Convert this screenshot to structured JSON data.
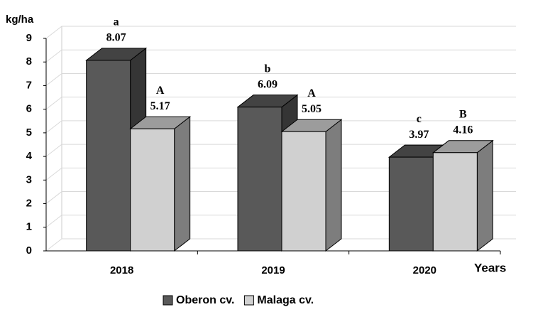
{
  "chart_data": {
    "type": "bar3d",
    "y_label": "kg/ha",
    "x_label": "Years",
    "categories": [
      "2018",
      "2019",
      "2020"
    ],
    "series": [
      {
        "name": "Oberon cv.",
        "color": "#595959",
        "values": [
          8.07,
          6.09,
          3.97
        ],
        "annotations": [
          "a",
          "b",
          "c"
        ]
      },
      {
        "name": "Malaga cv.",
        "color": "#d0d0d0",
        "values": [
          5.17,
          5.05,
          4.16
        ],
        "annotations": [
          "A",
          "A",
          "B"
        ]
      }
    ],
    "ylim": [
      0,
      9
    ],
    "yticks": [
      0,
      1,
      2,
      3,
      4,
      5,
      6,
      7,
      8,
      9
    ],
    "grid": true,
    "legend": "bottom"
  }
}
